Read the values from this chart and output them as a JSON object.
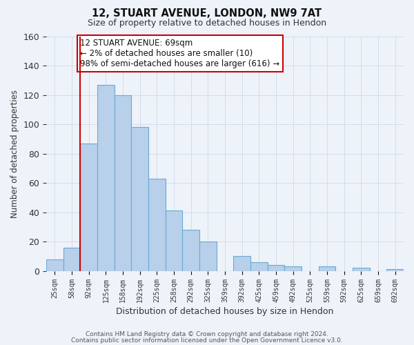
{
  "title1": "12, STUART AVENUE, LONDON, NW9 7AT",
  "title2": "Size of property relative to detached houses in Hendon",
  "xlabel": "Distribution of detached houses by size in Hendon",
  "ylabel": "Number of detached properties",
  "bar_labels": [
    "25sqm",
    "58sqm",
    "92sqm",
    "125sqm",
    "158sqm",
    "192sqm",
    "225sqm",
    "258sqm",
    "292sqm",
    "325sqm",
    "359sqm",
    "392sqm",
    "425sqm",
    "459sqm",
    "492sqm",
    "525sqm",
    "559sqm",
    "592sqm",
    "625sqm",
    "659sqm",
    "692sqm"
  ],
  "bar_values": [
    8,
    16,
    87,
    127,
    120,
    98,
    63,
    41,
    28,
    20,
    0,
    10,
    6,
    4,
    3,
    0,
    3,
    0,
    2,
    0,
    1
  ],
  "bar_color": "#b8d0ea",
  "bar_edge_color": "#6aaad4",
  "vline_color": "#cc0000",
  "ylim": [
    0,
    160
  ],
  "yticks": [
    0,
    20,
    40,
    60,
    80,
    100,
    120,
    140,
    160
  ],
  "annotation_lines": [
    "12 STUART AVENUE: 69sqm",
    "← 2% of detached houses are smaller (10)",
    "98% of semi-detached houses are larger (616) →"
  ],
  "footer1": "Contains HM Land Registry data © Crown copyright and database right 2024.",
  "footer2": "Contains public sector information licensed under the Open Government Licence v3.0.",
  "grid_color": "#d0d8e8",
  "bg_color": "#eef3fa",
  "ann_bg_color": "#ffffff"
}
